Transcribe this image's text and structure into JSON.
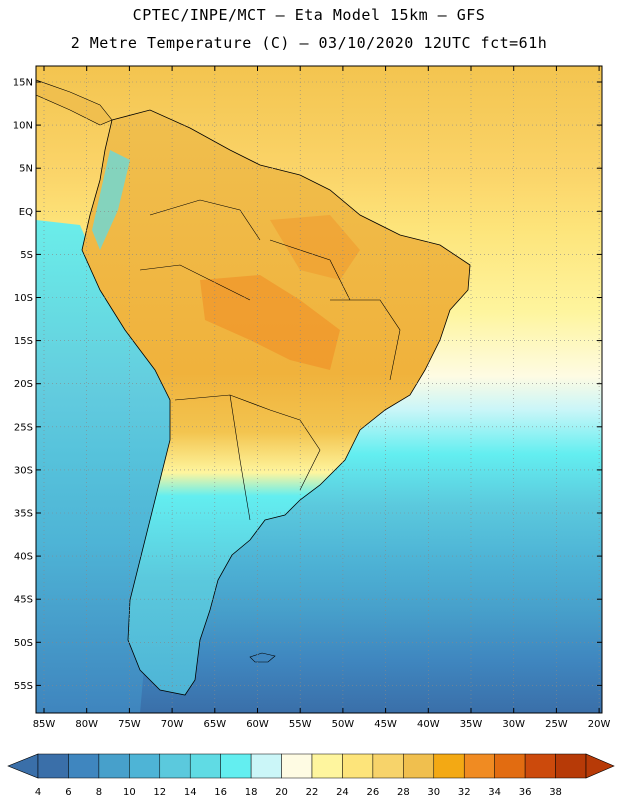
{
  "header": {
    "title_line1": "CPTEC/INPE/MCT –  Eta Model 15km – GFS",
    "title_line2": "2 Metre Temperature (C) – 03/10/2020 12UTC fct=61h"
  },
  "map": {
    "lat_labels": [
      "15N",
      "10N",
      "5N",
      "EQ",
      "5S",
      "10S",
      "15S",
      "20S",
      "25S",
      "30S",
      "35S",
      "40S",
      "45S",
      "50S",
      "55S"
    ],
    "lon_labels": [
      "85W",
      "80W",
      "75W",
      "70W",
      "65W",
      "60W",
      "55W",
      "50W",
      "45W",
      "40W",
      "35W",
      "30W",
      "25W",
      "20W"
    ]
  },
  "colorbar": {
    "labels": [
      "4",
      "6",
      "8",
      "10",
      "12",
      "14",
      "16",
      "18",
      "20",
      "22",
      "24",
      "26",
      "28",
      "30",
      "32",
      "34",
      "36",
      "38"
    ],
    "colors": [
      "#3a6fa9",
      "#3f86bf",
      "#47a0cb",
      "#4eb4d6",
      "#5bc9dd",
      "#60dbe4",
      "#63eef0",
      "#cbf6f8",
      "#fefbe3",
      "#fef59e",
      "#fde47a",
      "#f7d36a",
      "#f0bf4e",
      "#f3a914",
      "#f08b22",
      "#e26c11",
      "#cc4a0c",
      "#b73a07"
    ],
    "low_arrow_color": "#3a6fa9",
    "high_arrow_color": "#b73a07"
  }
}
